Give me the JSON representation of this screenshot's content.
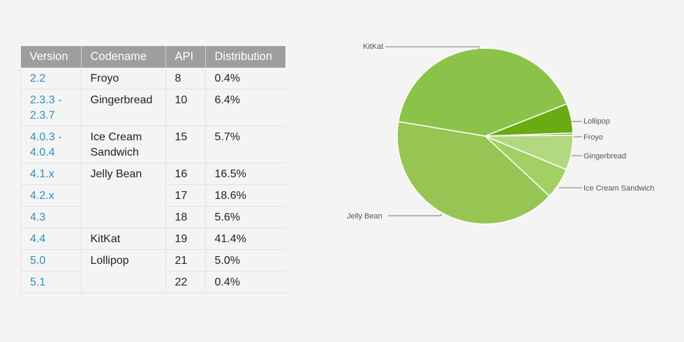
{
  "table": {
    "headers": [
      "Version",
      "Codename",
      "API",
      "Distribution"
    ],
    "rows": [
      {
        "version": "2.2",
        "codename": "Froyo",
        "api": "8",
        "distribution": "0.4%"
      },
      {
        "version": "2.3.3 -\n2.3.7",
        "codename": "Gingerbread",
        "api": "10",
        "distribution": "6.4%"
      },
      {
        "version": "4.0.3 -\n4.0.4",
        "codename": "Ice Cream\nSandwich",
        "api": "15",
        "distribution": "5.7%"
      },
      {
        "version": "4.1.x",
        "codename": "Jelly Bean",
        "api": "16",
        "distribution": "16.5%"
      },
      {
        "version": "4.2.x",
        "codename": "",
        "api": "17",
        "distribution": "18.6%"
      },
      {
        "version": "4.3",
        "codename": "",
        "api": "18",
        "distribution": "5.6%"
      },
      {
        "version": "4.4",
        "codename": "KitKat",
        "api": "19",
        "distribution": "41.4%"
      },
      {
        "version": "5.0",
        "codename": "Lollipop",
        "api": "21",
        "distribution": "5.0%"
      },
      {
        "version": "5.1",
        "codename": "",
        "api": "22",
        "distribution": "0.4%"
      }
    ]
  },
  "chart_data": {
    "type": "pie",
    "title": "",
    "slices": [
      {
        "label": "KitKat",
        "value": 41.4,
        "color": "#8bc34a"
      },
      {
        "label": "Lollipop",
        "value": 5.4,
        "color": "#6aaa14"
      },
      {
        "label": "Froyo",
        "value": 0.4,
        "color": "#79b52a"
      },
      {
        "label": "Gingerbread",
        "value": 6.4,
        "color": "#b2d980"
      },
      {
        "label": "Ice Cream Sandwich",
        "value": 5.7,
        "color": "#a3d065"
      },
      {
        "label": "Jelly Bean",
        "value": 40.7,
        "color": "#96c553"
      }
    ]
  }
}
